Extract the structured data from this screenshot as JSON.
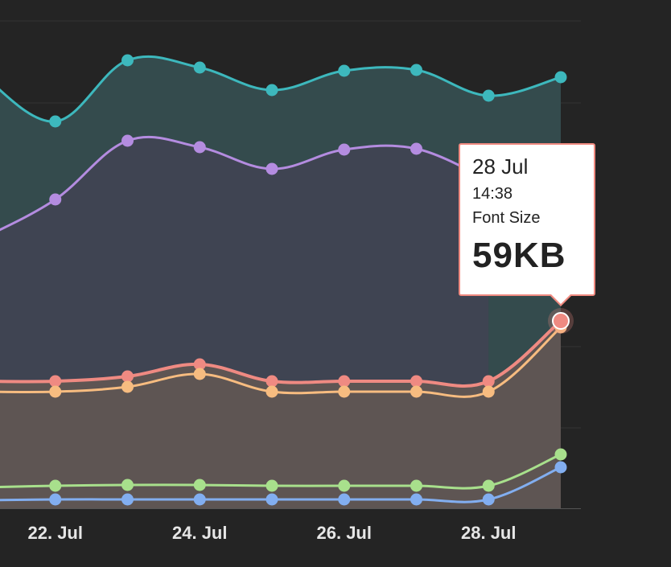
{
  "chart_data": {
    "type": "area",
    "x_dates": [
      "21 Jul",
      "22 Jul",
      "23 Jul",
      "24 Jul",
      "25 Jul",
      "26 Jul",
      "27 Jul",
      "28 Jul",
      "29 Jul"
    ],
    "x_tick_labels": [
      "22. Jul",
      "24. Jul",
      "26. Jul",
      "28. Jul"
    ],
    "tick_index": [
      1,
      3,
      5,
      7
    ],
    "grid": true,
    "series": [
      {
        "color": "#3db8bd",
        "fill": "#344b4d",
        "values": [
          538,
          481,
          557,
          548,
          520,
          544,
          545,
          513,
          536
        ]
      },
      {
        "color": "#b48ce0",
        "fill": "#3f4452",
        "values": [
          336,
          384,
          457,
          449,
          422,
          446,
          447,
          408,
          null
        ]
      },
      {
        "color": "#ef8a82",
        "fill": "#5e5553",
        "values": [
          158,
          158,
          164,
          179,
          158,
          158,
          158,
          158,
          233
        ]
      },
      {
        "color": "#f7bc80",
        "fill": null,
        "values": [
          145,
          145,
          151,
          167,
          145,
          145,
          145,
          145,
          225
        ]
      },
      {
        "color": "#a8e08c",
        "fill": null,
        "values": [
          26,
          28,
          29,
          29,
          28,
          28,
          28,
          28,
          67
        ]
      },
      {
        "color": "#82aef0",
        "fill": null,
        "values": [
          10,
          11,
          11,
          11,
          11,
          11,
          11,
          11,
          51
        ]
      }
    ]
  },
  "tooltip": {
    "date": "28 Jul",
    "time": "14:38",
    "series": "Font Size",
    "value": "59KB"
  }
}
